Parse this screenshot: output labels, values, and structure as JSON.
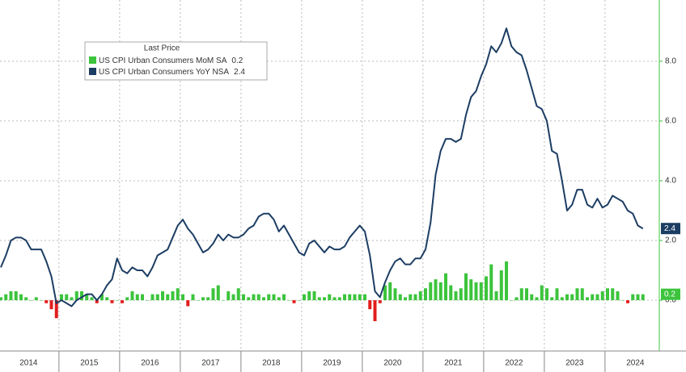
{
  "chart_data": {
    "type": "bar-line",
    "legend_title": "Last Price",
    "categories": [
      null,
      null,
      null,
      null,
      null,
      "2014",
      null,
      null,
      null,
      null,
      null,
      null,
      null,
      null,
      null,
      null,
      null,
      "2015",
      null,
      null,
      null,
      null,
      null,
      null,
      null,
      null,
      null,
      null,
      null,
      "2016",
      null,
      null,
      null,
      null,
      null,
      null,
      null,
      null,
      null,
      null,
      null,
      "2017",
      null,
      null,
      null,
      null,
      null,
      null,
      null,
      null,
      null,
      null,
      null,
      "2018",
      null,
      null,
      null,
      null,
      null,
      null,
      null,
      null,
      null,
      null,
      null,
      "2019",
      null,
      null,
      null,
      null,
      null,
      null,
      null,
      null,
      null,
      null,
      null,
      "2020",
      null,
      null,
      null,
      null,
      null,
      null,
      null,
      null,
      null,
      null,
      null,
      "2021",
      null,
      null,
      null,
      null,
      null,
      null,
      null,
      null,
      null,
      null,
      null,
      "2022",
      null,
      null,
      null,
      null,
      null,
      null,
      null,
      null,
      null,
      null,
      null,
      "2023",
      null,
      null,
      null,
      null,
      null,
      null,
      null,
      null,
      null,
      null,
      null,
      "2024",
      null,
      null
    ],
    "series": [
      {
        "name": "US CPI Urban Consumers MoM SA",
        "kind": "bar",
        "color": "#3cc43c",
        "negative_color": "#e21d1d",
        "values": [
          0.1,
          0.2,
          0.3,
          0.3,
          0.2,
          0.1,
          0.0,
          0.1,
          0.0,
          -0.1,
          -0.3,
          -0.6,
          0.2,
          0.2,
          0.1,
          0.3,
          0.3,
          0.2,
          0.1,
          -0.1,
          0.2,
          0.1,
          -0.1,
          0.0,
          -0.1,
          0.1,
          0.3,
          0.2,
          0.2,
          0.0,
          0.2,
          0.2,
          0.3,
          0.2,
          0.3,
          0.4,
          0.2,
          -0.2,
          0.2,
          0.0,
          0.1,
          0.1,
          0.4,
          0.5,
          0.0,
          0.3,
          0.2,
          0.4,
          0.2,
          0.1,
          0.2,
          0.2,
          0.1,
          0.2,
          0.2,
          0.1,
          0.2,
          0.0,
          -0.1,
          0.0,
          0.2,
          0.3,
          0.3,
          0.1,
          0.1,
          0.2,
          0.1,
          0.1,
          0.2,
          0.2,
          0.2,
          0.2,
          0.2,
          -0.3,
          -0.7,
          -0.1,
          0.5,
          0.6,
          0.4,
          0.2,
          0.1,
          0.2,
          0.2,
          0.3,
          0.4,
          0.6,
          0.7,
          0.6,
          0.9,
          0.5,
          0.3,
          0.4,
          0.9,
          0.7,
          0.6,
          0.6,
          0.8,
          1.2,
          0.3,
          1.0,
          1.3,
          0.0,
          0.1,
          0.4,
          0.4,
          0.2,
          0.1,
          0.5,
          0.4,
          0.1,
          0.4,
          0.1,
          0.2,
          0.2,
          0.4,
          0.4,
          0.1,
          0.2,
          0.2,
          0.3,
          0.4,
          0.4,
          0.3,
          0.0,
          -0.1,
          0.2,
          0.2,
          0.2
        ]
      },
      {
        "name": "US CPI Urban Consumers YoY NSA",
        "kind": "line",
        "color": "#1c3d63",
        "values": [
          1.1,
          1.5,
          2.0,
          2.1,
          2.1,
          2.0,
          1.7,
          1.7,
          1.7,
          1.3,
          0.8,
          -0.1,
          0.0,
          -0.1,
          -0.2,
          0.0,
          0.1,
          0.2,
          0.2,
          0.0,
          0.2,
          0.5,
          0.7,
          1.4,
          1.0,
          0.9,
          1.1,
          1.0,
          1.0,
          0.8,
          1.1,
          1.5,
          1.6,
          1.7,
          2.1,
          2.5,
          2.7,
          2.4,
          2.2,
          1.9,
          1.6,
          1.7,
          1.9,
          2.2,
          2.0,
          2.2,
          2.1,
          2.1,
          2.2,
          2.4,
          2.5,
          2.8,
          2.9,
          2.9,
          2.7,
          2.3,
          2.5,
          2.2,
          1.9,
          1.6,
          1.5,
          1.9,
          2.0,
          1.8,
          1.6,
          1.8,
          1.7,
          1.7,
          1.8,
          2.1,
          2.3,
          2.5,
          2.3,
          1.5,
          0.3,
          0.1,
          0.6,
          1.0,
          1.3,
          1.4,
          1.2,
          1.2,
          1.4,
          1.4,
          1.7,
          2.6,
          4.2,
          5.0,
          5.4,
          5.4,
          5.3,
          5.4,
          6.2,
          6.8,
          7.0,
          7.5,
          7.9,
          8.5,
          8.3,
          8.6,
          9.1,
          8.5,
          8.3,
          8.2,
          7.7,
          7.1,
          6.5,
          6.4,
          6.0,
          5.0,
          4.9,
          4.0,
          3.0,
          3.2,
          3.7,
          3.7,
          3.2,
          3.1,
          3.4,
          3.1,
          3.2,
          3.5,
          3.4,
          3.3,
          3.0,
          2.9,
          2.5,
          2.4
        ]
      }
    ],
    "ylim": [
      -1.7,
      10.05
    ],
    "yticks": [
      {
        "value": 0,
        "label": "0.0"
      },
      {
        "value": 2,
        "label": "2.0"
      },
      {
        "value": 4,
        "label": "4.0"
      },
      {
        "value": 6,
        "label": "6.0"
      },
      {
        "value": 8,
        "label": "8.0"
      }
    ],
    "grid": true
  }
}
